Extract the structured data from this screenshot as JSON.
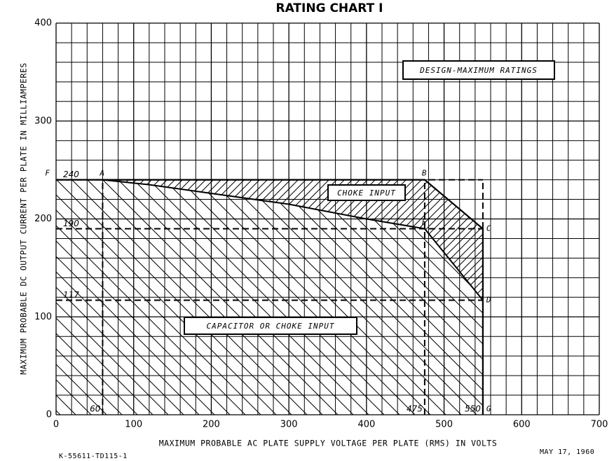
{
  "chart_data": {
    "type": "rating",
    "title": "RATING CHART I",
    "x_label": "MAXIMUM PROBABLE AC PLATE SUPPLY VOLTAGE PER PLATE (RMS) IN VOLTS",
    "y_label": "MAXIMUM PROBABLE DC OUTPUT CURRENT PER PLATE IN MILLIAMPERES",
    "xlim": [
      0,
      700
    ],
    "ylim": [
      0,
      400
    ],
    "xticks": [
      0,
      100,
      200,
      300,
      400,
      500,
      600,
      700
    ],
    "yticks": [
      0,
      100,
      200,
      300,
      400
    ],
    "grid": true,
    "color": "#000000",
    "boundary": {
      "x": [
        0,
        475,
        550,
        550,
        550
      ],
      "y": [
        240,
        240,
        190,
        117,
        0
      ]
    },
    "divider": {
      "x": [
        60,
        120,
        300,
        400,
        475,
        550
      ],
      "y": [
        240,
        235,
        215,
        200,
        190,
        117
      ]
    },
    "points": [
      {
        "label": "F",
        "x": 0,
        "y": 240
      },
      {
        "label": "A",
        "x": 60,
        "y": 240
      },
      {
        "label": "B",
        "x": 475,
        "y": 240
      },
      {
        "label": "C",
        "x": 550,
        "y": 190
      },
      {
        "label": "E",
        "x": 475,
        "y": 190
      },
      {
        "label": "D",
        "x": 550,
        "y": 117
      },
      {
        "label": "G",
        "x": 550,
        "y": 0
      }
    ],
    "reference_lines": [
      {
        "axis": "y",
        "value": 240
      },
      {
        "axis": "y",
        "value": 190
      },
      {
        "axis": "y",
        "value": 117
      },
      {
        "axis": "x",
        "value": 60
      },
      {
        "axis": "x",
        "value": 475
      },
      {
        "axis": "x",
        "value": 550
      }
    ],
    "annotations": [
      "DESIGN-MAXIMUM RATINGS",
      "CHOKE INPUT",
      "CAPACITOR OR CHOKE INPUT"
    ],
    "footer_left": "K-55611-TD115-1",
    "footer_right": "MAY 17, 1960"
  }
}
